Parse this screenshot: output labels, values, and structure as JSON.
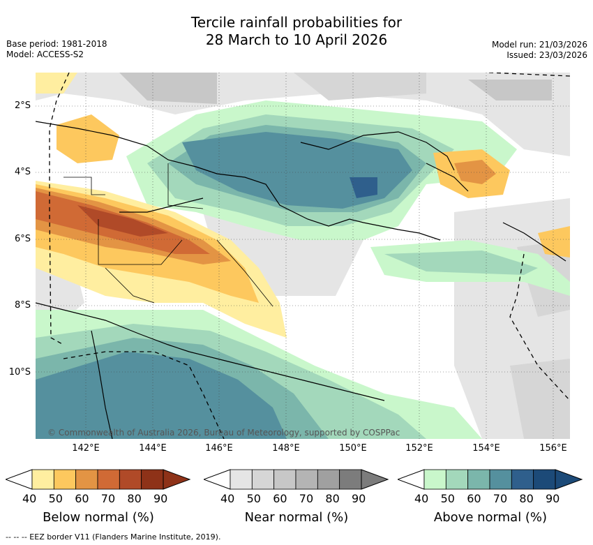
{
  "header": {
    "title_line1": "Tercile rainfall probabilities for",
    "title_line2": "28 March to 10 April 2026",
    "base_period": "Base period: 1981-2018",
    "model": "Model: ACCESS-S2",
    "model_run": "Model run: 21/03/2026",
    "issued": "Issued: 23/03/2026"
  },
  "map": {
    "lat_labels": [
      "2°S",
      "4°S",
      "6°S",
      "8°S",
      "10°S"
    ],
    "lon_labels": [
      "142°E",
      "144°E",
      "146°E",
      "148°E",
      "150°E",
      "152°E",
      "154°E",
      "156°E"
    ],
    "copyright": "© Commonwealth of Australia 2026, Bureau of Meteorology, supported by COSPPac"
  },
  "colorbars": [
    {
      "label": "Below normal (%)",
      "ticks": [
        "40",
        "50",
        "60",
        "70",
        "80",
        "90"
      ],
      "colors": [
        "#ffeea0",
        "#fdc85e",
        "#e39444",
        "#d06a35",
        "#b04a28",
        "#8e3218"
      ]
    },
    {
      "label": "Near normal (%)",
      "ticks": [
        "40",
        "50",
        "60",
        "70",
        "80",
        "90"
      ],
      "colors": [
        "#e5e5e5",
        "#d6d6d6",
        "#c7c7c7",
        "#b4b4b4",
        "#a0a0a0",
        "#7c7c7c"
      ]
    },
    {
      "label": "Above normal (%)",
      "ticks": [
        "40",
        "50",
        "60",
        "70",
        "80",
        "90"
      ],
      "colors": [
        "#c9f7cb",
        "#a3d8bb",
        "#7bb6ab",
        "#55909e",
        "#2f5f8c",
        "#1c4a78"
      ]
    }
  ],
  "footnote": "--  --  -- EEZ border V11 (Flanders Marine Institute, 2019)."
}
